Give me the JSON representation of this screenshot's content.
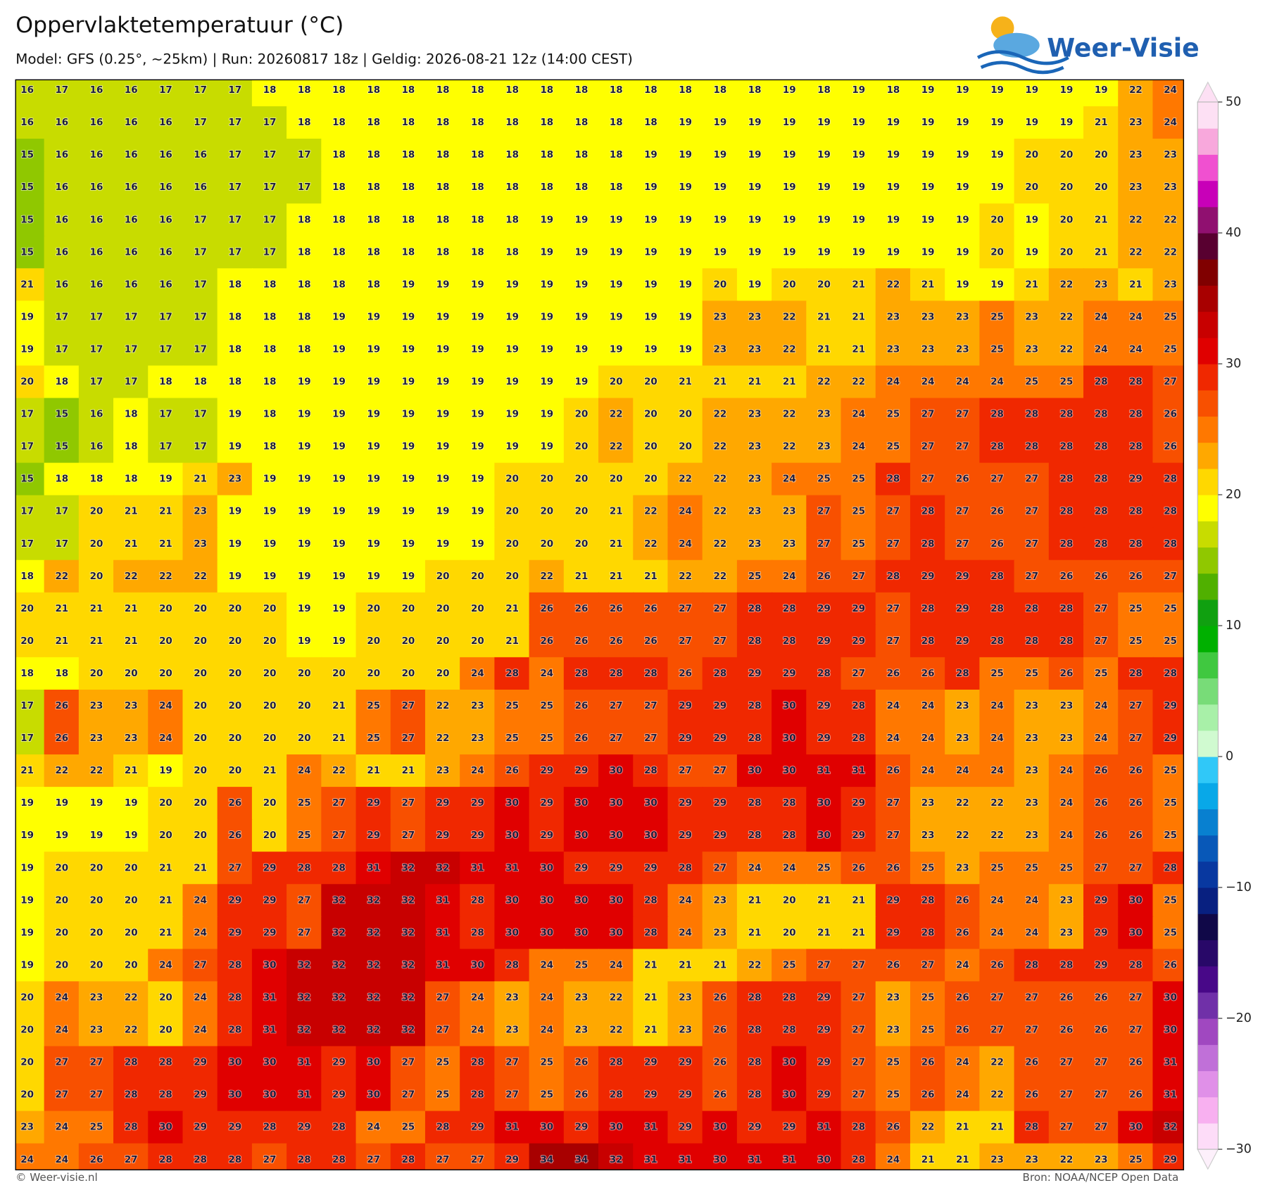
{
  "chart_data": {
    "type": "heatmap",
    "title": "Oppervlaktetemperatuur (°C)",
    "subtitle": "Model: GFS (0.25°, ~25km)  |  Run: 20260817 18z  |  Geldig: 2026-08-21 12z (14:00 CEST)",
    "logo": "Weer-Visie",
    "footer_left": "© Weer-visie.nl",
    "footer_right": "Bron: NOAA/NCEP Open Data",
    "clim": [
      -30,
      50
    ],
    "colorbar_ticks": [
      50,
      40,
      30,
      20,
      10,
      0,
      {
        "value": -10,
        "label": "−10"
      },
      {
        "value": -20,
        "label": "−20"
      },
      {
        "value": -30,
        "label": "−30"
      }
    ],
    "colors": [
      "#fddcf8",
      "#f8b0f0",
      "#e090e8",
      "#c070d8",
      "#a048c0",
      "#7030a8",
      "#480888",
      "#280868",
      "#100848",
      "#082080",
      "#0838a0",
      "#0858b8",
      "#0880d0",
      "#08a8e8",
      "#30c8f8",
      "#d0fad0",
      "#a8f0a8",
      "#78dc78",
      "#40c840",
      "#00b000",
      "#10a010",
      "#50b000",
      "#90c800",
      "#c8dc00",
      "#ffff00",
      "#ffd800",
      "#ffa800",
      "#ff7800",
      "#f85000",
      "#f02800",
      "#e00000",
      "#c80000",
      "#a80000",
      "#800000",
      "#580030",
      "#901070",
      "#c800b8",
      "#f050d0",
      "#f8a8dc",
      "#fde0f4"
    ],
    "values": [
      [
        16,
        17,
        16,
        16,
        17,
        17,
        17,
        18,
        18,
        18,
        18,
        18,
        18,
        18,
        18,
        18,
        18,
        18,
        18,
        18,
        18,
        18,
        19,
        18,
        19,
        18,
        19,
        19,
        19,
        19,
        19,
        19,
        22,
        24
      ],
      [
        16,
        16,
        16,
        16,
        16,
        17,
        17,
        17,
        18,
        18,
        18,
        18,
        18,
        18,
        18,
        18,
        18,
        18,
        18,
        19,
        19,
        19,
        19,
        19,
        19,
        19,
        19,
        19,
        19,
        19,
        19,
        21,
        23,
        24
      ],
      [
        15,
        16,
        16,
        16,
        16,
        16,
        17,
        17,
        17,
        18,
        18,
        18,
        18,
        18,
        18,
        18,
        18,
        18,
        19,
        19,
        19,
        19,
        19,
        19,
        19,
        19,
        19,
        19,
        19,
        20,
        20,
        20,
        23,
        23
      ],
      [
        15,
        16,
        16,
        16,
        16,
        16,
        17,
        17,
        17,
        18,
        18,
        18,
        18,
        18,
        18,
        18,
        18,
        18,
        19,
        19,
        19,
        19,
        19,
        19,
        19,
        19,
        19,
        19,
        19,
        20,
        20,
        20,
        23,
        23
      ],
      [
        15,
        16,
        16,
        16,
        16,
        17,
        17,
        17,
        18,
        18,
        18,
        18,
        18,
        18,
        18,
        19,
        19,
        19,
        19,
        19,
        19,
        19,
        19,
        19,
        19,
        19,
        19,
        19,
        20,
        19,
        20,
        21,
        22,
        22
      ],
      [
        15,
        16,
        16,
        16,
        16,
        17,
        17,
        17,
        18,
        18,
        18,
        18,
        18,
        18,
        18,
        19,
        19,
        19,
        19,
        19,
        19,
        19,
        19,
        19,
        19,
        19,
        19,
        19,
        20,
        19,
        20,
        21,
        22,
        22
      ],
      [
        21,
        16,
        16,
        16,
        16,
        17,
        18,
        18,
        18,
        18,
        18,
        19,
        19,
        19,
        19,
        19,
        19,
        19,
        19,
        19,
        20,
        19,
        20,
        20,
        21,
        22,
        21,
        19,
        19,
        21,
        22,
        23,
        21,
        23
      ],
      [
        19,
        17,
        17,
        17,
        17,
        17,
        18,
        18,
        18,
        19,
        19,
        19,
        19,
        19,
        19,
        19,
        19,
        19,
        19,
        19,
        23,
        23,
        22,
        21,
        21,
        23,
        23,
        23,
        25,
        23,
        22,
        24,
        24,
        25
      ],
      [
        19,
        17,
        17,
        17,
        17,
        17,
        18,
        18,
        18,
        19,
        19,
        19,
        19,
        19,
        19,
        19,
        19,
        19,
        19,
        19,
        23,
        23,
        22,
        21,
        21,
        23,
        23,
        23,
        25,
        23,
        22,
        24,
        24,
        25
      ],
      [
        20,
        18,
        17,
        17,
        18,
        18,
        18,
        18,
        19,
        19,
        19,
        19,
        19,
        19,
        19,
        19,
        19,
        20,
        20,
        21,
        21,
        21,
        21,
        22,
        22,
        24,
        24,
        24,
        24,
        25,
        25,
        28,
        28,
        27
      ],
      [
        17,
        15,
        16,
        18,
        17,
        17,
        19,
        18,
        19,
        19,
        19,
        19,
        19,
        19,
        19,
        19,
        20,
        22,
        20,
        20,
        22,
        23,
        22,
        23,
        24,
        25,
        27,
        27,
        28,
        28,
        28,
        28,
        28,
        26
      ],
      [
        17,
        15,
        16,
        18,
        17,
        17,
        19,
        18,
        19,
        19,
        19,
        19,
        19,
        19,
        19,
        19,
        20,
        22,
        20,
        20,
        22,
        23,
        22,
        23,
        24,
        25,
        27,
        27,
        28,
        28,
        28,
        28,
        28,
        26
      ],
      [
        15,
        18,
        18,
        18,
        19,
        21,
        23,
        19,
        19,
        19,
        19,
        19,
        19,
        19,
        20,
        20,
        20,
        20,
        20,
        22,
        22,
        23,
        24,
        25,
        25,
        28,
        27,
        26,
        27,
        27,
        28,
        28,
        29,
        28
      ],
      [
        17,
        17,
        20,
        21,
        21,
        23,
        19,
        19,
        19,
        19,
        19,
        19,
        19,
        19,
        20,
        20,
        20,
        21,
        22,
        24,
        22,
        23,
        23,
        27,
        25,
        27,
        28,
        27,
        26,
        27,
        28,
        28,
        28,
        28
      ],
      [
        17,
        17,
        20,
        21,
        21,
        23,
        19,
        19,
        19,
        19,
        19,
        19,
        19,
        19,
        20,
        20,
        20,
        21,
        22,
        24,
        22,
        23,
        23,
        27,
        25,
        27,
        28,
        27,
        26,
        27,
        28,
        28,
        28,
        28
      ],
      [
        18,
        22,
        20,
        22,
        22,
        22,
        19,
        19,
        19,
        19,
        19,
        19,
        20,
        20,
        20,
        22,
        21,
        21,
        21,
        22,
        22,
        25,
        24,
        26,
        27,
        28,
        29,
        29,
        28,
        27,
        26,
        26,
        26,
        27
      ],
      [
        20,
        21,
        21,
        21,
        20,
        20,
        20,
        20,
        19,
        19,
        20,
        20,
        20,
        20,
        21,
        26,
        26,
        26,
        26,
        27,
        27,
        28,
        28,
        29,
        29,
        27,
        28,
        29,
        28,
        28,
        28,
        27,
        25,
        25
      ],
      [
        20,
        21,
        21,
        21,
        20,
        20,
        20,
        20,
        19,
        19,
        20,
        20,
        20,
        20,
        21,
        26,
        26,
        26,
        26,
        27,
        27,
        28,
        28,
        29,
        29,
        27,
        28,
        29,
        28,
        28,
        28,
        27,
        25,
        25
      ],
      [
        18,
        18,
        20,
        20,
        20,
        20,
        20,
        20,
        20,
        20,
        20,
        20,
        20,
        24,
        28,
        24,
        28,
        28,
        28,
        26,
        28,
        29,
        29,
        28,
        27,
        26,
        26,
        28,
        25,
        25,
        26,
        25,
        28,
        28
      ],
      [
        17,
        26,
        23,
        23,
        24,
        20,
        20,
        20,
        20,
        21,
        25,
        27,
        22,
        23,
        25,
        25,
        26,
        27,
        27,
        29,
        29,
        28,
        30,
        29,
        28,
        24,
        24,
        23,
        24,
        23,
        23,
        24,
        27,
        29
      ],
      [
        17,
        26,
        23,
        23,
        24,
        20,
        20,
        20,
        20,
        21,
        25,
        27,
        22,
        23,
        25,
        25,
        26,
        27,
        27,
        29,
        29,
        28,
        30,
        29,
        28,
        24,
        24,
        23,
        24,
        23,
        23,
        24,
        27,
        29
      ],
      [
        21,
        22,
        22,
        21,
        19,
        20,
        20,
        21,
        24,
        22,
        21,
        21,
        23,
        24,
        26,
        29,
        29,
        30,
        28,
        27,
        27,
        30,
        30,
        31,
        31,
        26,
        24,
        24,
        24,
        23,
        24,
        26,
        26,
        25
      ],
      [
        19,
        19,
        19,
        19,
        20,
        20,
        26,
        20,
        25,
        27,
        29,
        27,
        29,
        29,
        30,
        29,
        30,
        30,
        30,
        29,
        29,
        28,
        28,
        30,
        29,
        27,
        23,
        22,
        22,
        23,
        24,
        26,
        26,
        25
      ],
      [
        19,
        19,
        19,
        19,
        20,
        20,
        26,
        20,
        25,
        27,
        29,
        27,
        29,
        29,
        30,
        29,
        30,
        30,
        30,
        29,
        29,
        28,
        28,
        30,
        29,
        27,
        23,
        22,
        22,
        23,
        24,
        26,
        26,
        25
      ],
      [
        19,
        20,
        20,
        20,
        21,
        21,
        27,
        29,
        28,
        28,
        31,
        32,
        32,
        31,
        31,
        30,
        29,
        29,
        29,
        28,
        27,
        24,
        24,
        25,
        26,
        26,
        25,
        23,
        25,
        25,
        25,
        27,
        27,
        28
      ],
      [
        19,
        20,
        20,
        20,
        21,
        24,
        29,
        29,
        27,
        32,
        32,
        32,
        31,
        28,
        30,
        30,
        30,
        30,
        28,
        24,
        23,
        21,
        20,
        21,
        21,
        29,
        28,
        26,
        24,
        24,
        23,
        29,
        30,
        25
      ],
      [
        19,
        20,
        20,
        20,
        21,
        24,
        29,
        29,
        27,
        32,
        32,
        32,
        31,
        28,
        30,
        30,
        30,
        30,
        28,
        24,
        23,
        21,
        20,
        21,
        21,
        29,
        28,
        26,
        24,
        24,
        23,
        29,
        30,
        25
      ],
      [
        19,
        20,
        20,
        20,
        24,
        27,
        28,
        30,
        32,
        32,
        32,
        32,
        31,
        30,
        28,
        24,
        25,
        24,
        21,
        21,
        21,
        22,
        25,
        27,
        27,
        26,
        27,
        24,
        26,
        28,
        28,
        29,
        28,
        26
      ],
      [
        20,
        24,
        23,
        22,
        20,
        24,
        28,
        31,
        32,
        32,
        32,
        32,
        27,
        24,
        23,
        24,
        23,
        22,
        21,
        23,
        26,
        28,
        28,
        29,
        27,
        23,
        25,
        26,
        27,
        27,
        26,
        26,
        27,
        30
      ],
      [
        20,
        24,
        23,
        22,
        20,
        24,
        28,
        31,
        32,
        32,
        32,
        32,
        27,
        24,
        23,
        24,
        23,
        22,
        21,
        23,
        26,
        28,
        28,
        29,
        27,
        23,
        25,
        26,
        27,
        27,
        26,
        26,
        27,
        30
      ],
      [
        20,
        27,
        27,
        28,
        28,
        29,
        30,
        30,
        31,
        29,
        30,
        27,
        25,
        28,
        27,
        25,
        26,
        28,
        29,
        29,
        26,
        28,
        30,
        29,
        27,
        25,
        26,
        24,
        22,
        26,
        27,
        27,
        26,
        31
      ],
      [
        20,
        27,
        27,
        28,
        28,
        29,
        30,
        30,
        31,
        29,
        30,
        27,
        25,
        28,
        27,
        25,
        26,
        28,
        29,
        29,
        26,
        28,
        30,
        29,
        27,
        25,
        26,
        24,
        22,
        26,
        27,
        27,
        26,
        31
      ],
      [
        23,
        24,
        25,
        28,
        30,
        29,
        29,
        28,
        29,
        28,
        24,
        25,
        28,
        29,
        31,
        30,
        29,
        30,
        31,
        29,
        30,
        29,
        29,
        31,
        28,
        26,
        22,
        21,
        21,
        28,
        27,
        27,
        30,
        32
      ],
      [
        24,
        24,
        26,
        27,
        28,
        28,
        28,
        27,
        28,
        28,
        27,
        28,
        27,
        27,
        29,
        34,
        34,
        32,
        31,
        31,
        30,
        31,
        31,
        30,
        28,
        24,
        21,
        21,
        23,
        23,
        22,
        23,
        25,
        29
      ]
    ]
  }
}
